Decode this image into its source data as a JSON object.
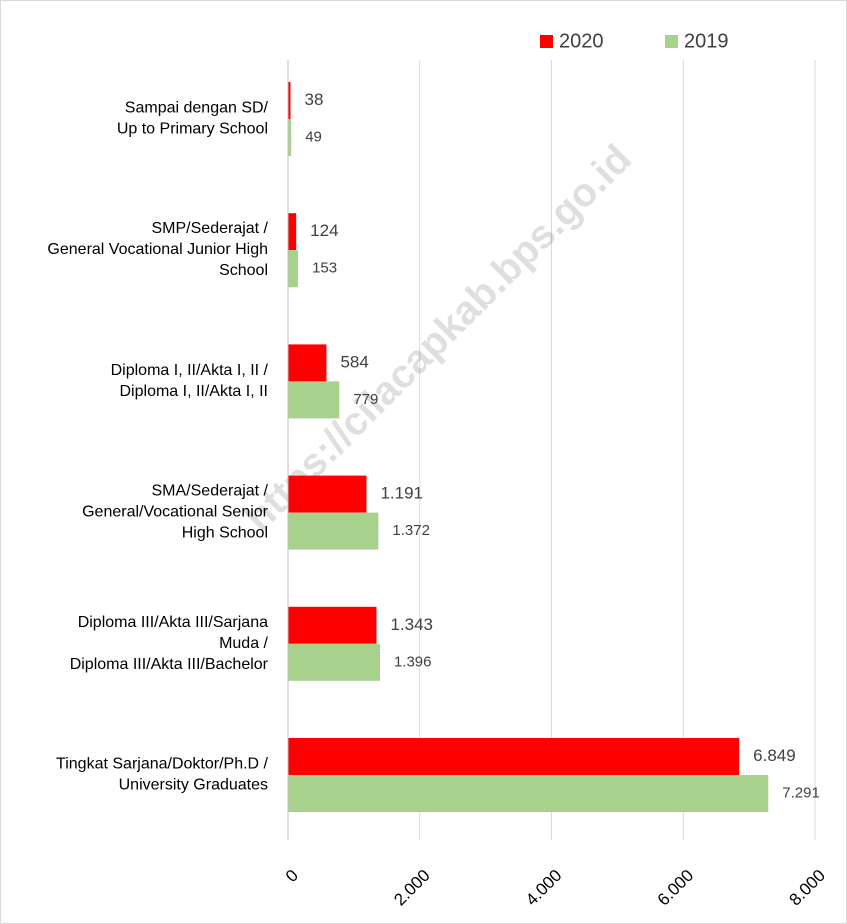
{
  "chart_data": {
    "type": "bar",
    "orientation": "horizontal",
    "categories": [
      "Sampai dengan SD/\nUp to Primary School",
      "SMP/Sederajat /\nGeneral Vocational Junior High\nSchool",
      "Diploma I, II/Akta I, II /\nDiploma I, II/Akta I, II",
      "SMA/Sederajat /\nGeneral/Vocational Senior\nHigh School",
      "Diploma III/Akta III/Sarjana\nMuda /\nDiploma III/Akta III/Bachelor",
      "Tingkat Sarjana/Doktor/Ph.D /\nUniversity Graduates"
    ],
    "series": [
      {
        "name": "2020",
        "color": "#ff0000",
        "values": [
          38,
          124,
          584,
          1191,
          1343,
          6849
        ],
        "value_labels": [
          "38",
          "124",
          "584",
          "1.191",
          "1.343",
          "6.849"
        ]
      },
      {
        "name": "2019",
        "color": "#a9d18e",
        "values": [
          49,
          153,
          779,
          1372,
          1396,
          7291
        ],
        "value_labels": [
          "49",
          "153",
          "779",
          "1.372",
          "1.396",
          "7.291"
        ]
      }
    ],
    "xlim": [
      0,
      8000
    ],
    "xticks": [
      0,
      {
        "value": 2000,
        "label": "2.000"
      },
      {
        "value": 4000,
        "label": "4.000"
      },
      {
        "value": 6000,
        "label": "6.000"
      },
      {
        "value": 8000,
        "label": "8.000"
      }
    ],
    "grid": true,
    "legend": "top",
    "annotations": [
      "https://cilacapkab.bps.go.id"
    ]
  }
}
